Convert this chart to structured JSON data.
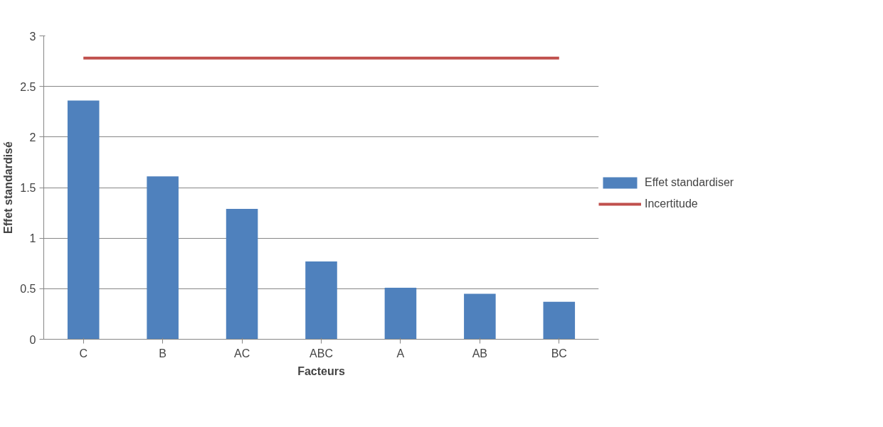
{
  "chart_data": {
    "type": "bar",
    "xlabel": "Facteurs",
    "ylabel": "Effet standardisé",
    "categories": [
      "C",
      "B",
      "AC",
      "ABC",
      "A",
      "AB",
      "BC"
    ],
    "series": [
      {
        "name": "Effet standardiser",
        "color": "#4f81bd",
        "values": [
          2.36,
          1.61,
          1.29,
          0.77,
          0.51,
          0.45,
          0.37
        ]
      },
      {
        "name": "Incertitude",
        "type": "line",
        "color": "#c0504d",
        "values": [
          2.78,
          2.78,
          2.78,
          2.78,
          2.78,
          2.78,
          2.78
        ]
      }
    ],
    "ylim": [
      0,
      3
    ],
    "yticks": [
      0,
      {
        "value": 0.5,
        "label": "0.5"
      },
      1,
      {
        "value": 1.5,
        "label": "1.5"
      },
      2,
      {
        "value": 2.5,
        "label": "2.5"
      },
      3
    ],
    "grid": "y",
    "legend": "right"
  }
}
